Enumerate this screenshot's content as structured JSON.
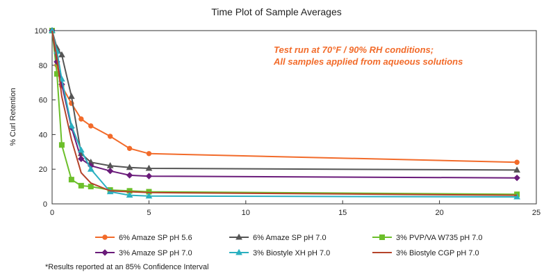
{
  "chart_data": {
    "type": "line",
    "title": "Time Plot of Sample Averages",
    "xlabel": "",
    "ylabel": "% Curl Retention",
    "xlim": [
      0,
      25
    ],
    "ylim": [
      0,
      100
    ],
    "x_ticks": [
      0,
      5,
      10,
      15,
      20,
      25
    ],
    "y_ticks": [
      0,
      20,
      40,
      60,
      80,
      100
    ],
    "grid": false,
    "legend_position": "bottom",
    "annotation": {
      "lines": [
        "Test run at 70°F / 90% RH conditions;",
        "All samples applied from aqueous solutions"
      ],
      "color": "#f26b2a"
    },
    "footnote": "*Results reported at an 85% Confidence Interval",
    "series": [
      {
        "name": "6% Amaze SP pH 5.6",
        "color": "#f26b2a",
        "marker": "circle",
        "x": [
          0,
          0.25,
          0.5,
          1,
          1.5,
          2,
          3,
          4,
          5,
          24
        ],
        "y": [
          100,
          80,
          68,
          58,
          49,
          45,
          39,
          32,
          29,
          24
        ]
      },
      {
        "name": "6% Amaze SP pH 7.0",
        "color": "#555555",
        "marker": "triangle",
        "x": [
          0,
          0.25,
          0.5,
          1,
          1.5,
          2,
          3,
          4,
          5,
          24
        ],
        "y": [
          100,
          90,
          86,
          62,
          29,
          24,
          22,
          21,
          20.5,
          19.5
        ]
      },
      {
        "name": "3% PVP/VA W735 pH 7.0",
        "color": "#6cbf2a",
        "marker": "square",
        "x": [
          0,
          0.25,
          0.5,
          1,
          1.5,
          2,
          3,
          4,
          5,
          24
        ],
        "y": [
          100,
          75,
          34,
          14,
          10.5,
          10,
          8,
          7.5,
          7,
          5.5
        ]
      },
      {
        "name": "3% Amaze SP pH 7.0",
        "color": "#6a1b7a",
        "marker": "diamond",
        "x": [
          0,
          0.25,
          0.5,
          1,
          1.5,
          2,
          3,
          4,
          5,
          24
        ],
        "y": [
          100,
          82,
          69,
          44,
          26,
          22,
          19,
          16.5,
          16,
          15
        ]
      },
      {
        "name": "3% Biostyle XH pH 7.0",
        "color": "#2ab0c0",
        "marker": "triangle",
        "x": [
          0,
          0.25,
          0.5,
          1,
          1.5,
          2,
          3,
          4,
          5,
          24
        ],
        "y": [
          100,
          88,
          72,
          45,
          31,
          20,
          7,
          5,
          4.5,
          4
        ]
      },
      {
        "name": "3% Biostyle CGP pH 7.0",
        "color": "#b5432a",
        "marker": "line",
        "x": [
          0,
          0.25,
          0.5,
          1,
          1.5,
          2,
          3,
          4,
          5,
          24
        ],
        "y": [
          100,
          84,
          62,
          37,
          18,
          12,
          7.5,
          7,
          6.5,
          5
        ]
      }
    ]
  }
}
